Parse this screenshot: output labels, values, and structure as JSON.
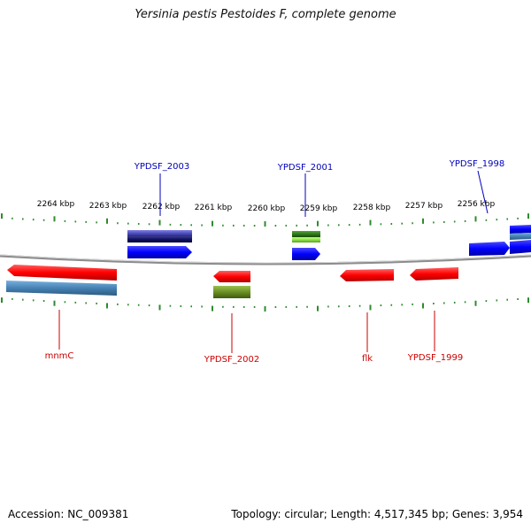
{
  "title": "Yersinia pestis Pestoides F, complete genome",
  "footer": {
    "accession": "Accession: NC_009381",
    "summary": "Topology: circular; Length: 4,517,345 bp; Genes: 3,954"
  },
  "colors": {
    "backbone": "#8c8c8c",
    "tick": "#2e8b2e",
    "forward_gene": "#0000ff",
    "reverse_gene": "#ff0000",
    "forward_label": "#0000bb",
    "reverse_label": "#cc0000",
    "cds_steelblue": "#4682b4",
    "cds_darkgreen": "#3a7a1a",
    "cds_olive": "#6b8e23",
    "cds_slate": "#5050c0"
  },
  "scale_labels": [
    "2264 kbp",
    "2263 kbp",
    "2262 kbp",
    "2261 kbp",
    "2260 kbp",
    "2259 kbp",
    "2258 kbp",
    "2257 kbp",
    "2256 kbp"
  ],
  "gene_labels": {
    "forward": [
      "YPDSF_2003",
      "YPDSF_2001",
      "YPDSF_1998"
    ],
    "reverse": [
      "mnmC",
      "YPDSF_2002",
      "flk",
      "YPDSF_1999"
    ]
  }
}
